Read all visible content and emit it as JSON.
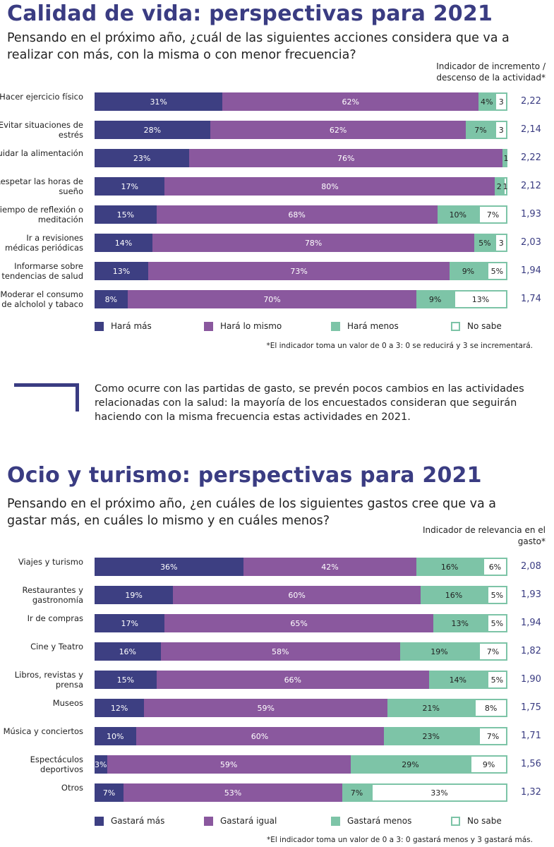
{
  "colors": {
    "title": "#3a3c82",
    "mas": "#3d3f82",
    "igual": "#8a589e",
    "menos": "#7dc4a7",
    "nosabe": "#ffffff",
    "nosabe_border": "#7dc4a7"
  },
  "chart_data": [
    {
      "type": "bar",
      "stacked": true,
      "orientation": "horizontal",
      "title": "Calidad de vida: perspectivas para 2021",
      "subtitle": "Pensando en el próximo año, ¿cuál de las siguientes acciones considera que va a realizar con más, con la misma o con menor frecuencia?",
      "indicator_header": "Indicador de incremento / descenso de la actividad*",
      "legend": [
        "Hará más",
        "Hará lo mismo",
        "Hará menos",
        "No sabe"
      ],
      "legend_placement": "bottom",
      "footnote": "*El indicador toma un valor de 0 a 3: 0 se reducirá y 3 se incrementará.",
      "rows": [
        {
          "label": "Hacer ejercicio físico",
          "values": [
            31,
            62,
            4,
            3
          ],
          "labels": [
            "31%",
            "62%",
            "4%",
            "3"
          ],
          "indicator": "2,22"
        },
        {
          "label": "Evitar situaciones de estrés",
          "values": [
            28,
            62,
            7,
            3
          ],
          "labels": [
            "28%",
            "62%",
            "7%",
            "3"
          ],
          "indicator": "2,14"
        },
        {
          "label": "Cuidar la alimentación",
          "values": [
            23,
            76,
            0.5,
            0.5
          ],
          "labels": [
            "23%",
            "76%",
            "",
            "1"
          ],
          "indicator": "2,22"
        },
        {
          "label": "Respetar las horas de sueño",
          "values": [
            17,
            80,
            2,
            1
          ],
          "labels": [
            "17%",
            "80%",
            "2",
            "1"
          ],
          "indicator": "2,12"
        },
        {
          "label": "Tiempo de reflexión o meditación",
          "values": [
            15,
            68,
            10,
            7
          ],
          "labels": [
            "15%",
            "68%",
            "10%",
            "7%"
          ],
          "indicator": "1,93"
        },
        {
          "label": "Ir a revisiones médicas periódicas",
          "values": [
            14,
            78,
            5,
            3
          ],
          "labels": [
            "14%",
            "78%",
            "5%",
            "3"
          ],
          "indicator": "2,03"
        },
        {
          "label": "Informarse sobre tendencias de salud",
          "values": [
            13,
            73,
            9,
            5
          ],
          "labels": [
            "13%",
            "73%",
            "9%",
            "5%"
          ],
          "indicator": "1,94"
        },
        {
          "label": "Moderar el consumo de alcholol y tabaco",
          "values": [
            8,
            70,
            9,
            13
          ],
          "labels": [
            "8%",
            "70%",
            "9%",
            "13%"
          ],
          "indicator": "1,74"
        }
      ]
    },
    {
      "type": "bar",
      "stacked": true,
      "orientation": "horizontal",
      "title": "Ocio y turismo: perspectivas para 2021",
      "subtitle": "Pensando en el próximo año, ¿en cuáles de los siguientes gastos cree que va a gastar más, en cuáles lo mismo y en cuáles menos?",
      "indicator_header": "Indicador de relevancia en el gasto*",
      "legend": [
        "Gastará más",
        "Gastará igual",
        "Gastará menos",
        "No sabe"
      ],
      "legend_placement": "bottom",
      "footnote": "*El indicador toma un valor de 0 a 3: 0 gastará menos y 3 gastará más.",
      "rows": [
        {
          "label": "Viajes y turismo",
          "values": [
            36,
            42,
            16,
            6
          ],
          "labels": [
            "36%",
            "42%",
            "16%",
            "6%"
          ],
          "indicator": "2,08"
        },
        {
          "label": "Restaurantes y gastronomía",
          "values": [
            19,
            60,
            16,
            5
          ],
          "labels": [
            "19%",
            "60%",
            "16%",
            "5%"
          ],
          "indicator": "1,93"
        },
        {
          "label": "Ir de compras",
          "values": [
            17,
            65,
            13,
            5
          ],
          "labels": [
            "17%",
            "65%",
            "13%",
            "5%"
          ],
          "indicator": "1,94"
        },
        {
          "label": "Cine y Teatro",
          "values": [
            16,
            58,
            19,
            7
          ],
          "labels": [
            "16%",
            "58%",
            "19%",
            "7%"
          ],
          "indicator": "1,82"
        },
        {
          "label": "Libros, revistas y prensa",
          "values": [
            15,
            66,
            14,
            5
          ],
          "labels": [
            "15%",
            "66%",
            "14%",
            "5%"
          ],
          "indicator": "1,90"
        },
        {
          "label": "Museos",
          "values": [
            12,
            59,
            21,
            8
          ],
          "labels": [
            "12%",
            "59%",
            "21%",
            "8%"
          ],
          "indicator": "1,75"
        },
        {
          "label": "Música y conciertos",
          "values": [
            10,
            60,
            23,
            7
          ],
          "labels": [
            "10%",
            "60%",
            "23%",
            "7%"
          ],
          "indicator": "1,71"
        },
        {
          "label": "Espectáculos deportivos",
          "values": [
            3,
            59,
            29,
            9
          ],
          "labels": [
            "3%",
            "59%",
            "29%",
            "9%"
          ],
          "indicator": "1,56"
        },
        {
          "label": "Otros",
          "values": [
            7,
            53,
            7,
            33
          ],
          "labels": [
            "7%",
            "53%",
            "7%",
            "33%"
          ],
          "indicator": "1,32"
        }
      ]
    }
  ],
  "quote": "Como ocurre con las partidas de gasto, se prevén pocos cambios en las actividades relacionadas con la salud: la mayoría de los encuestados consideran que seguirán haciendo con la misma frecuencia estas actividades en 2021."
}
